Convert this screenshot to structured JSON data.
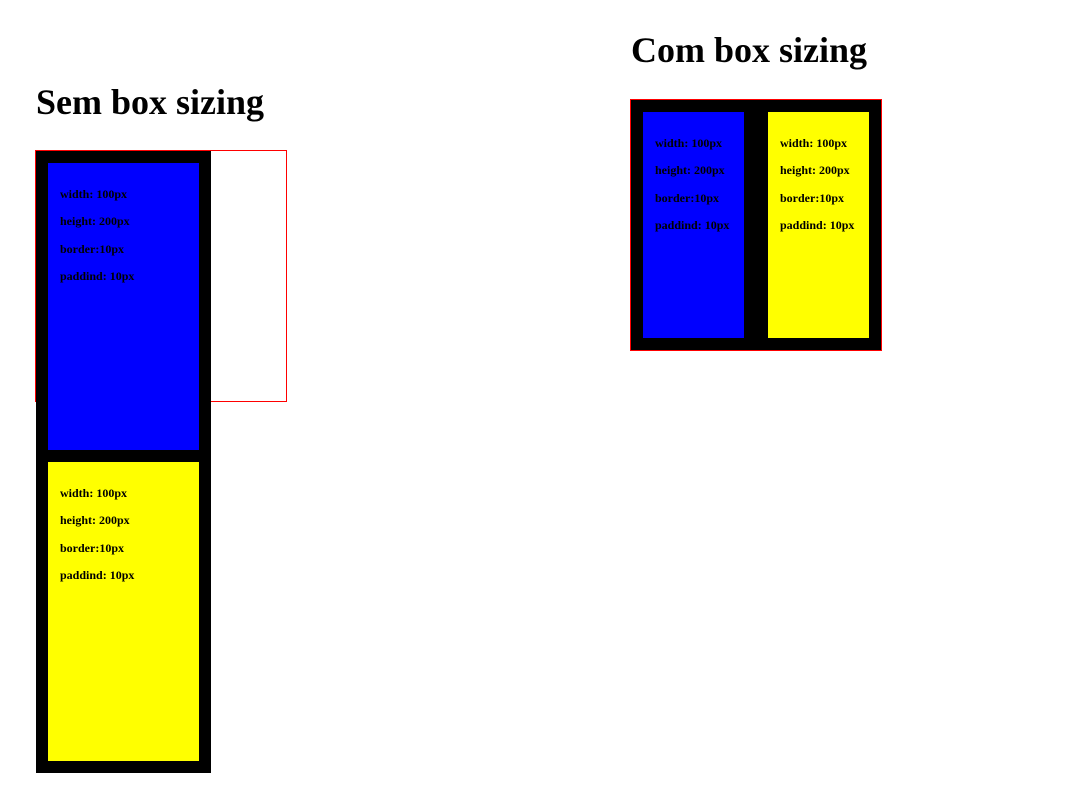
{
  "sections": {
    "sem": {
      "title": "Sem box sizing",
      "boxes": [
        {
          "color": "#0000ff",
          "lines": [
            "width: 100px",
            "height: 200px",
            "border:10px",
            "paddind: 10px"
          ]
        },
        {
          "color": "#ffff00",
          "lines": [
            "width: 100px",
            "height: 200px",
            "border:10px",
            "paddind: 10px"
          ]
        }
      ]
    },
    "com": {
      "title": "Com box sizing",
      "boxes": [
        {
          "color": "#0000ff",
          "lines": [
            "width: 100px",
            "height: 200px",
            "border:10px",
            "paddind: 10px"
          ]
        },
        {
          "color": "#ffff00",
          "lines": [
            "width: 100px",
            "height: 200px",
            "border:10px",
            "paddind: 10px"
          ]
        }
      ]
    }
  },
  "colors": {
    "container_border": "#ff0000",
    "box_border": "#000000",
    "blue": "#0000ff",
    "yellow": "#ffff00"
  }
}
